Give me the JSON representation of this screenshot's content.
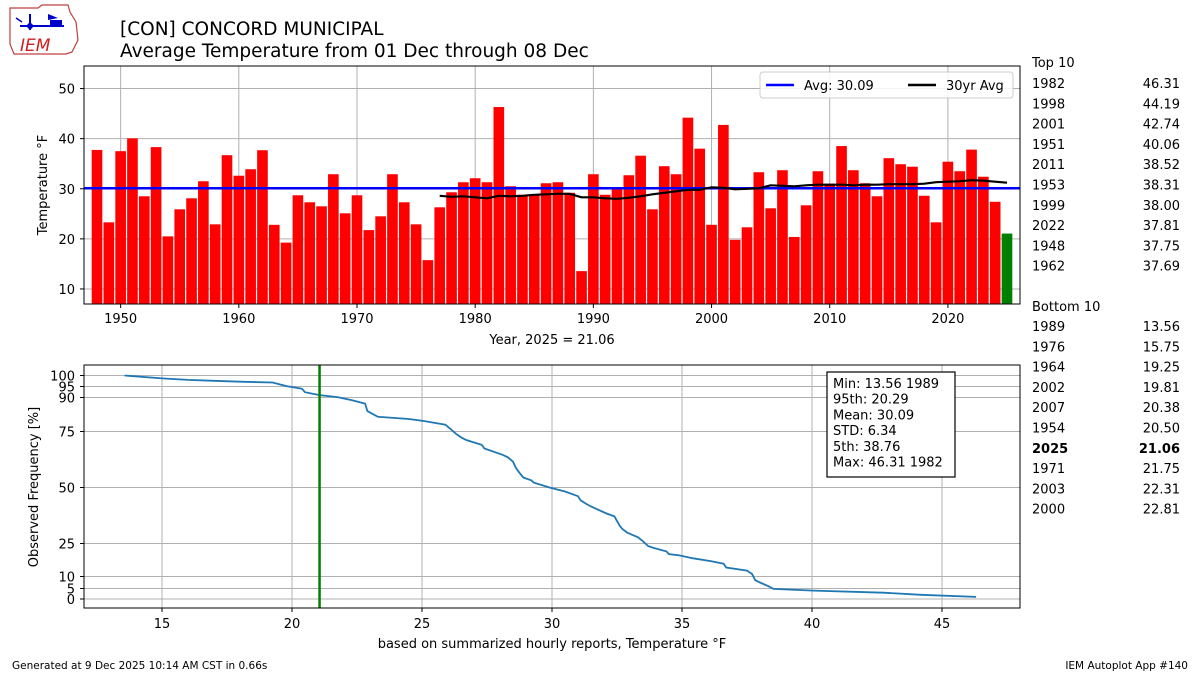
{
  "title_line1": "[CON] CONCORD MUNICIPAL",
  "title_line2": "Average Temperature from 01 Dec through 08 Dec",
  "logo_text": "IEM",
  "footer_left": "Generated at 9 Dec 2025 10:14 AM CST in 0.66s",
  "footer_right": "IEM Autoplot App #140",
  "colors": {
    "bar": "#ff0000",
    "highlight": "#008000",
    "avg": "#0000ff",
    "thirty": "#000000",
    "cdf": "#1f77b4",
    "marker": "#008000",
    "grid": "#b0b0b0"
  },
  "top10": {
    "heading": "Top 10",
    "items": [
      {
        "year": "1982",
        "value": "46.31"
      },
      {
        "year": "1998",
        "value": "44.19"
      },
      {
        "year": "2001",
        "value": "42.74"
      },
      {
        "year": "1951",
        "value": "40.06"
      },
      {
        "year": "2011",
        "value": "38.52"
      },
      {
        "year": "1953",
        "value": "38.31"
      },
      {
        "year": "1999",
        "value": "38.00"
      },
      {
        "year": "2022",
        "value": "37.81"
      },
      {
        "year": "1948",
        "value": "37.75"
      },
      {
        "year": "1962",
        "value": "37.69"
      }
    ]
  },
  "bottom10": {
    "heading": "Bottom 10",
    "items": [
      {
        "year": "1989",
        "value": "13.56",
        "bold": false
      },
      {
        "year": "1976",
        "value": "15.75",
        "bold": false
      },
      {
        "year": "1964",
        "value": "19.25",
        "bold": false
      },
      {
        "year": "2002",
        "value": "19.81",
        "bold": false
      },
      {
        "year": "2007",
        "value": "20.38",
        "bold": false
      },
      {
        "year": "1954",
        "value": "20.50",
        "bold": false
      },
      {
        "year": "2025",
        "value": "21.06",
        "bold": true
      },
      {
        "year": "1971",
        "value": "21.75",
        "bold": false
      },
      {
        "year": "2003",
        "value": "22.31",
        "bold": false
      },
      {
        "year": "2000",
        "value": "22.81",
        "bold": false
      }
    ]
  },
  "chart_data": [
    {
      "type": "bar",
      "ylabel": "Temperature °F",
      "xlabel": "Year, 2025 = 21.06",
      "xlim": [
        1946.9,
        2026.1
      ],
      "ylim": [
        7,
        54.5
      ],
      "xticks": [
        1950,
        1960,
        1970,
        1980,
        1990,
        2000,
        2010,
        2020
      ],
      "yticks": [
        10,
        20,
        30,
        40,
        50
      ],
      "grid": true,
      "legend": {
        "placement": "top-right",
        "entries": [
          "Avg: 30.09",
          "30yr Avg"
        ]
      },
      "average": 30.09,
      "highlight_year": 2025,
      "years": [
        1948,
        1949,
        1950,
        1951,
        1952,
        1953,
        1954,
        1955,
        1956,
        1957,
        1958,
        1959,
        1960,
        1961,
        1962,
        1963,
        1964,
        1965,
        1966,
        1967,
        1968,
        1969,
        1970,
        1971,
        1972,
        1973,
        1974,
        1975,
        1976,
        1977,
        1978,
        1979,
        1980,
        1981,
        1982,
        1983,
        1984,
        1985,
        1986,
        1987,
        1988,
        1989,
        1990,
        1991,
        1992,
        1993,
        1994,
        1995,
        1996,
        1997,
        1998,
        1999,
        2000,
        2001,
        2002,
        2003,
        2004,
        2005,
        2006,
        2007,
        2008,
        2009,
        2010,
        2011,
        2012,
        2013,
        2014,
        2015,
        2016,
        2017,
        2018,
        2019,
        2020,
        2021,
        2022,
        2023,
        2024,
        2025
      ],
      "values": [
        37.75,
        23.3,
        37.5,
        40.06,
        28.5,
        38.31,
        20.5,
        25.9,
        28.1,
        31.5,
        22.9,
        36.7,
        32.6,
        33.9,
        37.69,
        22.8,
        19.25,
        28.7,
        27.3,
        26.5,
        32.9,
        25.1,
        28.7,
        21.75,
        24.5,
        32.9,
        27.3,
        22.9,
        15.75,
        26.3,
        29.3,
        31.3,
        32.1,
        31.3,
        46.31,
        30.5,
        28.8,
        28.9,
        31.1,
        31.3,
        29.2,
        13.56,
        32.9,
        28.8,
        29.9,
        32.7,
        36.6,
        25.9,
        34.5,
        32.9,
        44.19,
        38.0,
        22.81,
        42.74,
        19.81,
        22.31,
        33.3,
        26.1,
        33.7,
        20.38,
        26.7,
        33.5,
        31.0,
        38.52,
        33.7,
        31.1,
        28.5,
        36.1,
        34.9,
        34.4,
        28.6,
        23.3,
        35.4,
        33.5,
        37.81,
        32.4,
        27.4,
        21.06
      ],
      "thirty_year_avg": {
        "years": [
          1977,
          1978,
          1979,
          1980,
          1981,
          1982,
          1983,
          1984,
          1985,
          1986,
          1987,
          1988,
          1989,
          1990,
          1991,
          1992,
          1993,
          1994,
          1995,
          1996,
          1997,
          1998,
          1999,
          2000,
          2001,
          2002,
          2003,
          2004,
          2005,
          2006,
          2007,
          2008,
          2009,
          2010,
          2011,
          2012,
          2013,
          2014,
          2015,
          2016,
          2017,
          2018,
          2019,
          2020,
          2021,
          2022,
          2023,
          2024,
          2025
        ],
        "values": [
          28.6,
          28.4,
          28.5,
          28.3,
          28.1,
          28.6,
          28.5,
          28.6,
          28.8,
          28.9,
          29.0,
          29.0,
          28.3,
          28.3,
          28.1,
          28.0,
          28.2,
          28.5,
          28.9,
          29.2,
          29.5,
          29.8,
          29.8,
          30.3,
          30.2,
          29.9,
          30.0,
          30.1,
          30.7,
          30.6,
          30.5,
          30.7,
          30.8,
          30.8,
          30.8,
          30.7,
          30.8,
          30.8,
          30.9,
          30.9,
          30.9,
          31.0,
          31.3,
          31.4,
          31.5,
          31.7,
          31.6,
          31.4,
          31.2
        ]
      }
    },
    {
      "type": "line",
      "ylabel": "Observed Frequency [%]",
      "xlabel": "based on summarized hourly reports, Temperature °F",
      "xlim": [
        12,
        48
      ],
      "xticks": [
        15,
        20,
        25,
        30,
        35,
        40,
        45
      ],
      "yticks": [
        0,
        5,
        10,
        25,
        50,
        75,
        90,
        95,
        100
      ],
      "grid": true,
      "marker_value": 21.06,
      "stats": [
        "Min: 13.56 1989",
        "95th: 20.29",
        "Mean: 30.09",
        "STD: 6.34",
        "5th: 38.76",
        "Max: 46.31 1982"
      ],
      "x": [
        13.56,
        15.0,
        16.0,
        17.0,
        18.0,
        19.25,
        19.81,
        20.38,
        20.5,
        21.06,
        21.75,
        22.31,
        22.81,
        22.9,
        23.3,
        24.5,
        25.1,
        25.9,
        26.1,
        26.3,
        26.5,
        26.7,
        27.3,
        27.4,
        28.1,
        28.3,
        28.5,
        28.6,
        28.7,
        28.8,
        28.9,
        29.2,
        29.3,
        29.9,
        30.5,
        31.0,
        31.1,
        31.3,
        31.5,
        32.1,
        32.4,
        32.6,
        32.7,
        32.9,
        33.3,
        33.5,
        33.7,
        33.9,
        34.4,
        34.5,
        34.9,
        35.4,
        36.1,
        36.6,
        36.7,
        37.5,
        37.69,
        37.75,
        37.81,
        38.0,
        38.31,
        38.52,
        40.06,
        42.74,
        44.19,
        46.31
      ],
      "y": [
        100.0,
        98.7,
        98.0,
        97.6,
        97.2,
        96.8,
        95.1,
        94.0,
        92.4,
        91.1,
        90.2,
        88.8,
        87.3,
        84.0,
        81.5,
        80.5,
        79.6,
        78.0,
        76.1,
        74.0,
        72.4,
        71.2,
        69.0,
        67.4,
        64.6,
        63.5,
        61.5,
        59.0,
        57.3,
        55.8,
        54.4,
        53.2,
        52.2,
        50.0,
        48.2,
        46.1,
        44.3,
        42.8,
        41.5,
        38.4,
        37.1,
        33.0,
        31.5,
        29.8,
        27.8,
        26.0,
        23.8,
        23.0,
        21.4,
        20.2,
        19.6,
        18.3,
        17.0,
        15.8,
        14.1,
        12.7,
        11.2,
        9.9,
        8.5,
        7.5,
        6.0,
        4.8,
        4.0,
        3.0,
        2.0,
        1.0
      ]
    }
  ]
}
